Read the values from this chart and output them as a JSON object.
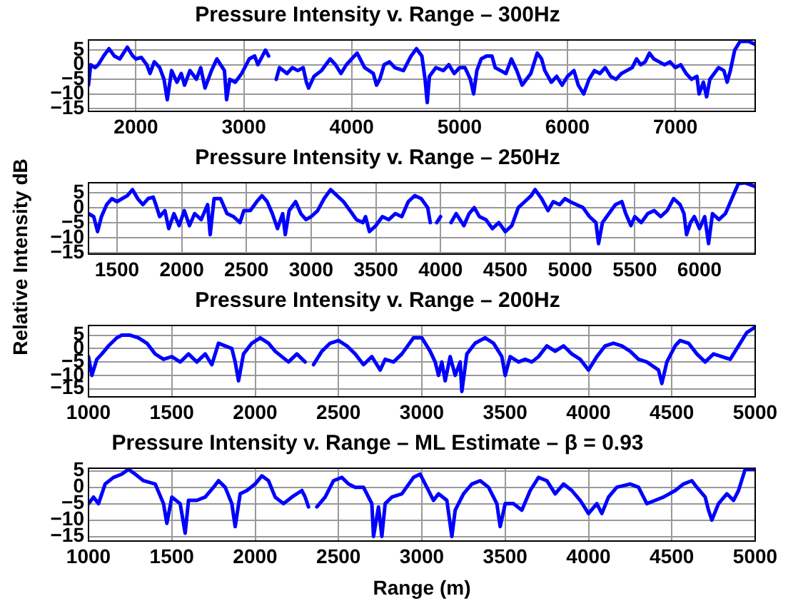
{
  "chart_data": [
    {
      "type": "line",
      "title": "Pressure Intensity v. Range – 300Hz",
      "xlim": [
        1560,
        7740
      ],
      "xticks": [
        2000,
        3000,
        4000,
        5000,
        6000,
        7000
      ],
      "ylim": [
        -16,
        8.5
      ],
      "yticks": [
        -15,
        -10,
        -5,
        0,
        5
      ],
      "grid": true,
      "legend": false,
      "marker": "none",
      "line_style": "solid",
      "x": [
        1560,
        1580,
        1620,
        1650,
        1700,
        1750,
        1800,
        1850,
        1920,
        1970,
        2000,
        2050,
        2100,
        2130,
        2170,
        2220,
        2260,
        2290,
        2330,
        2380,
        2420,
        2450,
        2500,
        2560,
        2600,
        2640,
        2700,
        2750,
        2820,
        2840,
        2870,
        2920,
        2980,
        3050,
        3100,
        3130,
        3200,
        3230,
        3260,
        3300,
        3330,
        3400,
        3450,
        3500,
        3550,
        3580,
        3600,
        3650,
        3720,
        3800,
        3850,
        3900,
        3950,
        4000,
        4050,
        4120,
        4200,
        4230,
        4260,
        4300,
        4350,
        4400,
        4480,
        4550,
        4600,
        4650,
        4680,
        4700,
        4720,
        4780,
        4850,
        4900,
        4950,
        5000,
        5050,
        5100,
        5130,
        5160,
        5200,
        5250,
        5300,
        5330,
        5380,
        5430,
        5480,
        5530,
        5580,
        5620,
        5660,
        5720,
        5760,
        5790,
        5850,
        5900,
        5950,
        6000,
        6060,
        6100,
        6150,
        6200,
        6250,
        6300,
        6350,
        6400,
        6450,
        6500,
        6550,
        6600,
        6640,
        6680,
        6720,
        6760,
        6800,
        6850,
        6900,
        6950,
        7000,
        7050,
        7100,
        7150,
        7200,
        7220,
        7260,
        7290,
        7320,
        7360,
        7400,
        7450,
        7480,
        7510,
        7550,
        7600,
        7680,
        7740
      ],
      "series": [
        {
          "color": "#0000ff",
          "values": [
            -7,
            0,
            -1,
            0,
            3,
            5.5,
            3,
            2,
            6,
            3,
            2,
            2.5,
            0,
            -3,
            1,
            -1,
            -5,
            -12,
            -2,
            -6,
            -3,
            -7,
            -2,
            -5,
            -1,
            -8,
            -2,
            2,
            -2,
            -12,
            -5,
            -6,
            -3,
            2,
            3,
            0,
            5,
            3,
            null,
            -5,
            -1,
            -3,
            -1,
            -2,
            -1,
            -6,
            -8,
            -4,
            -2,
            2,
            0,
            -3,
            0,
            2,
            4,
            -1,
            -3,
            -7,
            -5,
            0,
            1,
            -1,
            -2,
            3,
            5.5,
            3,
            -5,
            -13,
            -4,
            -1,
            -2,
            0,
            -3,
            -1,
            -1,
            -5,
            -10,
            -2,
            2,
            3,
            3,
            -1,
            -2,
            -3,
            2,
            -2,
            -7,
            -5,
            -3,
            4,
            2,
            -2,
            -6,
            -4,
            -7,
            -4,
            -2,
            -7,
            -10,
            -5,
            -2,
            -3,
            -1,
            -4,
            -5,
            -3,
            -2,
            -1,
            2,
            0,
            1,
            4,
            2,
            1,
            0,
            1,
            -1,
            0,
            -3,
            -5,
            -4,
            -10,
            -6,
            -11,
            -5,
            -3,
            -1,
            -2,
            -6,
            -2,
            5,
            8,
            8,
            7
          ]
        }
      ]
    },
    {
      "type": "line",
      "title": "Pressure Intensity v. Range – 250Hz",
      "ylabel": "Relative Intensity dB",
      "xlim": [
        1280,
        6430
      ],
      "xticks": [
        1500,
        2000,
        2500,
        3000,
        3500,
        4000,
        4500,
        5000,
        5500,
        6000
      ],
      "ylim": [
        -15.5,
        8.3
      ],
      "yticks": [
        -15,
        -10,
        -5,
        0,
        5
      ],
      "grid": true,
      "legend": false,
      "marker": "none",
      "line_style": "solid",
      "x": [
        1280,
        1320,
        1350,
        1380,
        1420,
        1460,
        1500,
        1540,
        1580,
        1620,
        1660,
        1700,
        1740,
        1780,
        1800,
        1830,
        1870,
        1900,
        1940,
        1980,
        2020,
        2060,
        2100,
        2150,
        2200,
        2220,
        2250,
        2300,
        2350,
        2400,
        2450,
        2480,
        2530,
        2580,
        2620,
        2660,
        2700,
        2740,
        2780,
        2800,
        2830,
        2880,
        2920,
        2960,
        3000,
        3050,
        3100,
        3150,
        3200,
        3250,
        3300,
        3350,
        3400,
        3420,
        3450,
        3500,
        3550,
        3600,
        3650,
        3700,
        3750,
        3800,
        3850,
        3900,
        3920,
        3940,
        3970,
        4000,
        4040,
        4080,
        4120,
        4180,
        4220,
        4260,
        4300,
        4350,
        4400,
        4450,
        4500,
        4550,
        4600,
        4650,
        4700,
        4730,
        4780,
        4830,
        4870,
        4920,
        4960,
        5000,
        5050,
        5100,
        5150,
        5200,
        5220,
        5250,
        5300,
        5350,
        5400,
        5430,
        5470,
        5500,
        5550,
        5600,
        5650,
        5700,
        5750,
        5800,
        5850,
        5880,
        5900,
        5930,
        5960,
        6000,
        6040,
        6070,
        6100,
        6150,
        6200,
        6250,
        6300,
        6350,
        6430
      ],
      "series": [
        {
          "color": "#0000ff",
          "values": [
            -2,
            -3,
            -8,
            -3,
            1,
            3,
            2,
            3,
            4,
            6,
            3,
            1,
            3,
            3.5,
            1,
            -3,
            -1,
            -7,
            -2,
            -6,
            -1,
            -6,
            -2,
            -4,
            1,
            -9,
            3,
            3,
            -2,
            -3,
            -5,
            -1,
            -1,
            2,
            4,
            2,
            -2,
            -7,
            -2,
            -9,
            -1,
            2,
            -2,
            -4,
            -3,
            -1,
            3,
            6,
            4,
            2,
            -1,
            -4,
            -5,
            -3,
            -8,
            -6,
            -3,
            -4,
            -2,
            -3,
            2,
            4,
            3,
            0,
            -5,
            null,
            -5,
            -3,
            null,
            -5,
            -2,
            -6,
            -2,
            0,
            -3,
            -4,
            -7,
            -5,
            -8,
            -6,
            0,
            2,
            4,
            6,
            3,
            -1,
            2,
            1,
            3,
            2,
            1,
            0,
            -3,
            -5,
            -12,
            -5,
            -2,
            1,
            2,
            -2,
            -6,
            -3,
            -5,
            -2,
            -1,
            -3,
            -1,
            3,
            1,
            -2,
            -9,
            -5,
            -3,
            -7,
            -3,
            -12,
            -2,
            -4,
            -2,
            3,
            8,
            8.3,
            7
          ]
        }
      ]
    },
    {
      "type": "line",
      "title": "Pressure Intensity v. Range – 200Hz",
      "xlim": [
        1000,
        5000
      ],
      "xticks": [
        1000,
        1500,
        2000,
        2500,
        3000,
        3500,
        4000,
        4500,
        5000
      ],
      "ylim": [
        -18,
        8.6
      ],
      "yticks": [
        -15,
        -10,
        -5,
        0,
        5
      ],
      "grid": true,
      "legend": false,
      "marker": "none",
      "line_style": "solid",
      "x": [
        1000,
        1020,
        1050,
        1080,
        1120,
        1170,
        1200,
        1250,
        1300,
        1350,
        1400,
        1450,
        1500,
        1550,
        1600,
        1650,
        1700,
        1740,
        1780,
        1820,
        1860,
        1880,
        1900,
        1930,
        1980,
        2030,
        2080,
        2120,
        2160,
        2200,
        2250,
        2300,
        2320,
        2350,
        2400,
        2450,
        2500,
        2550,
        2600,
        2650,
        2700,
        2750,
        2780,
        2830,
        2880,
        2950,
        3000,
        3050,
        3080,
        3100,
        3120,
        3140,
        3170,
        3200,
        3230,
        3240,
        3270,
        3320,
        3380,
        3430,
        3480,
        3500,
        3530,
        3580,
        3620,
        3660,
        3700,
        3750,
        3800,
        3850,
        3900,
        3950,
        4000,
        4050,
        4100,
        4150,
        4200,
        4250,
        4300,
        4350,
        4420,
        4440,
        4470,
        4520,
        4550,
        4600,
        4650,
        4700,
        4750,
        4800,
        4850,
        4900,
        4950,
        5000
      ],
      "series": [
        {
          "color": "#0000ff",
          "values": [
            -3,
            -10,
            -4,
            -2,
            1,
            4,
            5,
            5,
            4,
            2,
            -2,
            -4,
            -3,
            -5,
            -2,
            -5,
            -2,
            -6,
            2,
            1,
            0,
            -5,
            -12,
            -2,
            2,
            4,
            2,
            -1,
            -3,
            -5,
            -2,
            -5,
            null,
            -6,
            -1,
            2,
            3,
            1,
            -2,
            -6,
            -3,
            -8,
            -4,
            -5,
            -2,
            4,
            4,
            -1,
            -5,
            -10,
            -5,
            -12,
            -3,
            -10,
            -5,
            -16,
            -2,
            2,
            4,
            2,
            -3,
            -10,
            -3,
            -5,
            -4,
            -5,
            -3,
            1,
            -1,
            1,
            -2,
            -4,
            -8,
            -3,
            1,
            2,
            1,
            -1,
            -4,
            -5,
            -8,
            -13,
            -5,
            1,
            3,
            2,
            -2,
            -5,
            -2,
            -3,
            -4,
            1,
            6,
            8
          ]
        }
      ]
    },
    {
      "type": "line",
      "title": "Pressure Intensity v. Range – ML Estimate – β = 0.93",
      "xlabel": "Range (m)",
      "xlim": [
        1000,
        5000
      ],
      "xticks": [
        1000,
        1500,
        2000,
        2500,
        3000,
        3500,
        4000,
        4500,
        5000
      ],
      "ylim": [
        -16.4,
        5.8
      ],
      "yticks": [
        -15,
        -10,
        -5,
        0,
        5
      ],
      "grid": true,
      "legend": false,
      "marker": "none",
      "line_style": "solid",
      "x": [
        1000,
        1030,
        1060,
        1100,
        1150,
        1200,
        1240,
        1280,
        1330,
        1400,
        1450,
        1470,
        1500,
        1550,
        1580,
        1600,
        1650,
        1700,
        1750,
        1780,
        1820,
        1860,
        1880,
        1910,
        1950,
        2000,
        2040,
        2080,
        2120,
        2170,
        2220,
        2280,
        2300,
        2320,
        2340,
        2370,
        2420,
        2470,
        2520,
        2560,
        2600,
        2650,
        2700,
        2710,
        2740,
        2760,
        2780,
        2820,
        2880,
        2950,
        2990,
        3030,
        3070,
        3100,
        3150,
        3180,
        3200,
        3250,
        3300,
        3350,
        3400,
        3450,
        3470,
        3500,
        3550,
        3600,
        3650,
        3700,
        3750,
        3800,
        3850,
        3900,
        3950,
        4000,
        4050,
        4080,
        4120,
        4170,
        4250,
        4300,
        4350,
        4400,
        4450,
        4520,
        4570,
        4620,
        4650,
        4700,
        4720,
        4740,
        4780,
        4830,
        4870,
        4900,
        4940,
        5000
      ],
      "series": [
        {
          "color": "#0000ff",
          "values": [
            -5,
            -3,
            -5,
            1,
            3,
            4,
            5.5,
            4,
            2,
            1,
            -5,
            -11,
            -3,
            -5,
            -14,
            -4,
            -4,
            -3,
            0,
            2,
            0,
            -5,
            -12,
            -2,
            -1,
            1,
            3.5,
            2,
            -3,
            -5,
            -3,
            -1,
            -3,
            -6,
            null,
            -6,
            -3,
            2,
            3,
            1,
            0,
            0,
            -5,
            -15,
            -6,
            -15,
            -5,
            -3,
            -2,
            3,
            4,
            0,
            -4,
            -2,
            -4,
            -15,
            -7,
            -2,
            1,
            2,
            0,
            -5,
            -12,
            -5,
            -5,
            -7,
            -1,
            3,
            2,
            -2,
            1,
            -1,
            -4,
            -8,
            -5,
            -8,
            -3,
            0,
            1,
            0,
            -5,
            -4,
            -3,
            -1,
            1,
            2,
            0,
            -3,
            -7,
            -10,
            -5,
            -2,
            -4,
            -1,
            5.5,
            5.5
          ]
        }
      ]
    }
  ]
}
